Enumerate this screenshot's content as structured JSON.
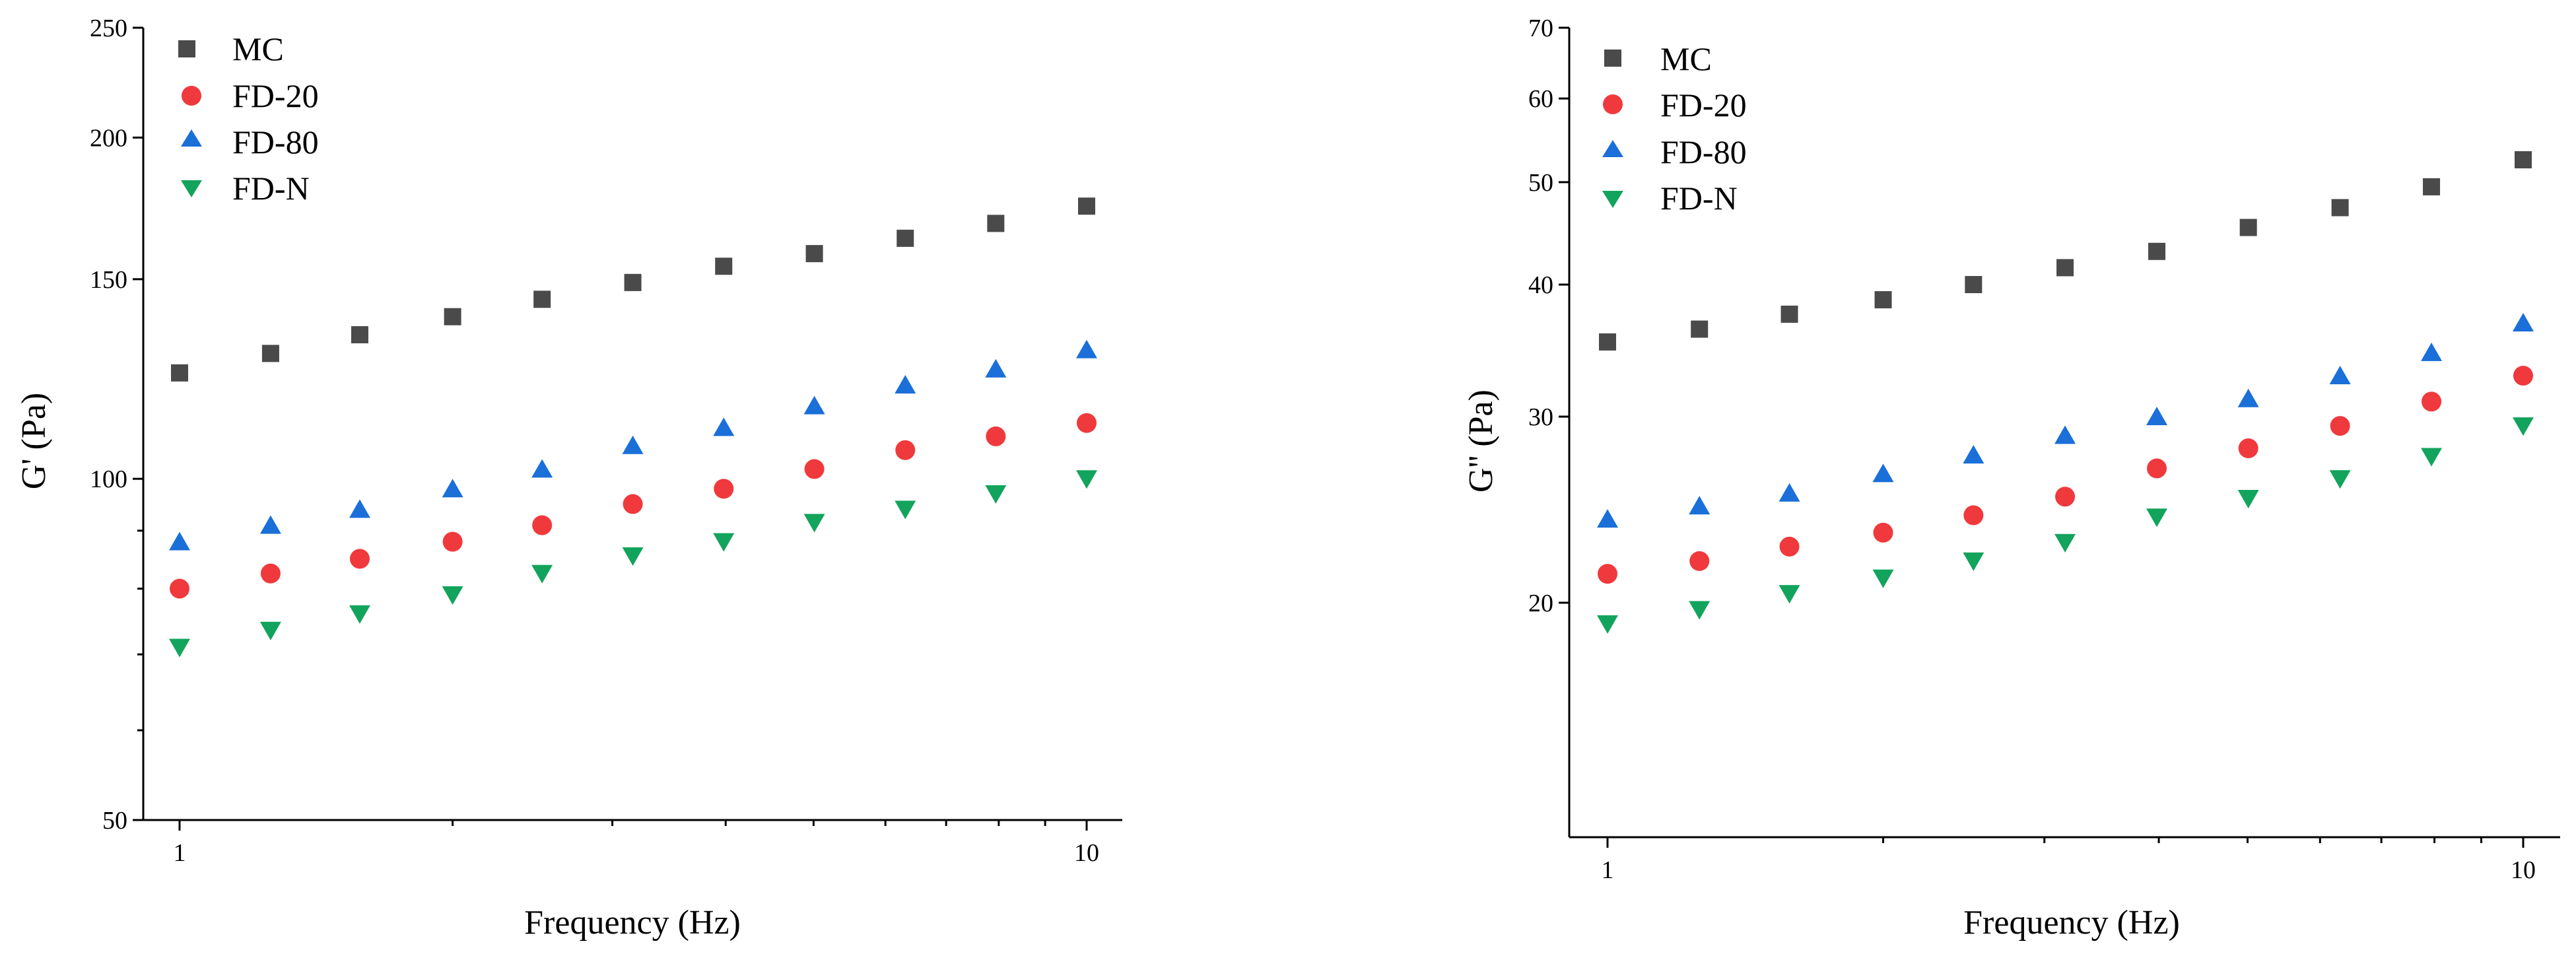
{
  "chart_data": [
    {
      "type": "scatter",
      "xscale": "log",
      "yscale": "log",
      "xlabel": "Frequency (Hz)",
      "ylabel": "G' (Pa)",
      "xlim": [
        1,
        10
      ],
      "ylim": [
        50,
        250
      ],
      "xticks": [
        1,
        10
      ],
      "xtick_labels": [
        "1",
        "10"
      ],
      "yticks": [
        50,
        100,
        150,
        200,
        250
      ],
      "ytick_labels": [
        "50",
        "100",
        "150",
        "200",
        "250"
      ],
      "legend_position": "top-left",
      "x": [
        1,
        1.26,
        1.58,
        2,
        2.51,
        3.16,
        3.98,
        5.01,
        6.31,
        7.94,
        10
      ],
      "series": [
        {
          "name": "MC",
          "marker": "square",
          "color": "#4a4a4a",
          "values": [
            124,
            129,
            134,
            139,
            144,
            149,
            154,
            158,
            163,
            168,
            174
          ]
        },
        {
          "name": "FD-20",
          "marker": "circle",
          "color": "#f0393c",
          "values": [
            80,
            82.5,
            85,
            88,
            91,
            95,
            98,
            102,
            106,
            109,
            112
          ]
        },
        {
          "name": "FD-80",
          "marker": "triangle-up",
          "color": "#1a6fd9",
          "values": [
            88,
            91,
            94,
            98,
            102,
            107,
            111,
            116,
            121,
            125,
            130
          ]
        },
        {
          "name": "FD-N",
          "marker": "triangle-down",
          "color": "#12a45c",
          "values": [
            71,
            73.5,
            76,
            79,
            82.5,
            85.5,
            88,
            91.5,
            94,
            97,
            100
          ]
        }
      ]
    },
    {
      "type": "scatter",
      "xscale": "log",
      "yscale": "log",
      "xlabel": "Frequency (Hz)",
      "ylabel": "G'' (Pa)",
      "xlim": [
        1,
        10
      ],
      "ylim": [
        12,
        70
      ],
      "xticks": [
        1,
        10
      ],
      "xtick_labels": [
        "1",
        "10"
      ],
      "yticks": [
        20,
        30,
        40,
        50,
        60,
        70
      ],
      "ytick_labels": [
        "20",
        "30",
        "40",
        "50",
        "60",
        "70"
      ],
      "legend_position": "top-left",
      "x": [
        1,
        1.26,
        1.58,
        2,
        2.51,
        3.16,
        3.98,
        5.01,
        6.31,
        7.94,
        10
      ],
      "series": [
        {
          "name": "MC",
          "marker": "square",
          "color": "#4a4a4a",
          "values": [
            35.3,
            36.3,
            37.5,
            38.7,
            40,
            41.5,
            43,
            45.3,
            47.3,
            49.5,
            52.5
          ]
        },
        {
          "name": "FD-20",
          "marker": "circle",
          "color": "#f0393c",
          "values": [
            21.3,
            21.9,
            22.6,
            23.3,
            24.2,
            25.2,
            26.8,
            28,
            29.4,
            31,
            32.8
          ]
        },
        {
          "name": "FD-80",
          "marker": "triangle-up",
          "color": "#1a6fd9",
          "values": [
            24,
            24.7,
            25.4,
            26.5,
            27.6,
            28.8,
            30,
            31.2,
            32.8,
            34.5,
            36.8
          ]
        },
        {
          "name": "FD-N",
          "marker": "triangle-down",
          "color": "#12a45c",
          "values": [
            19.1,
            19.7,
            20.4,
            21.1,
            21.9,
            22.8,
            24.1,
            25.1,
            26.2,
            27.5,
            29.4
          ]
        }
      ]
    }
  ]
}
